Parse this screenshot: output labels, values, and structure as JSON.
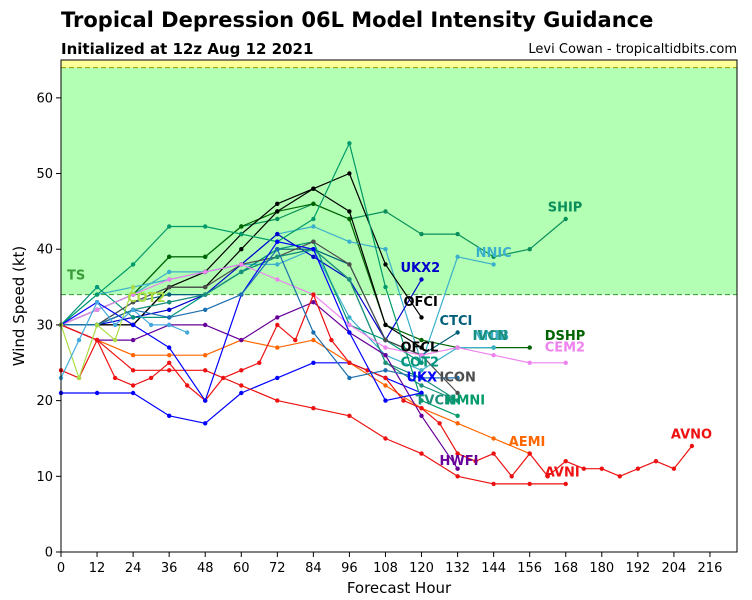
{
  "header": {
    "title": "Tropical Depression 06L Model Intensity Guidance",
    "subtitle": "Initialized at 12z Aug 12 2021",
    "credit": "Levi Cowan - tropicaltidbits.com"
  },
  "chart_data": {
    "type": "line",
    "title": "Tropical Depression 06L Model Intensity Guidance",
    "xlabel": "Forecast Hour",
    "ylabel": "Wind Speed (kt)",
    "xlim": [
      0,
      225
    ],
    "ylim": [
      0,
      65
    ],
    "xticks": [
      0,
      12,
      24,
      36,
      48,
      60,
      72,
      84,
      96,
      108,
      120,
      132,
      144,
      156,
      168,
      180,
      192,
      204,
      216
    ],
    "yticks": [
      0,
      10,
      20,
      30,
      40,
      50,
      60
    ],
    "grid": false,
    "bands": [
      {
        "label": "TS",
        "y0": 34,
        "y1": 64,
        "color": "#b3ffb3",
        "label_color": "#3a9a3a"
      },
      {
        "label": "",
        "y0": 64,
        "y1": 65,
        "color": "#ffff99",
        "label_color": "#999900"
      }
    ],
    "series": [
      {
        "name": "SHIP",
        "color": "#0a8f5a",
        "x": [
          0,
          12,
          24,
          36,
          48,
          60,
          72,
          84,
          96,
          108,
          120,
          132,
          144,
          156,
          168
        ],
        "y": [
          30,
          32,
          34,
          39,
          39,
          43,
          44,
          46,
          44,
          45,
          42,
          42,
          39,
          40,
          44
        ]
      },
      {
        "name": "DSHP",
        "color": "#006400",
        "x": [
          0,
          12,
          24,
          36,
          48,
          60,
          72,
          84,
          96,
          108,
          120,
          132,
          144,
          156
        ],
        "y": [
          30,
          32,
          34,
          39,
          39,
          43,
          45,
          46,
          44,
          30,
          28,
          27,
          27,
          27
        ]
      },
      {
        "name": "NNIC",
        "color": "#3ab0cc",
        "x": [
          0,
          12,
          24,
          36,
          48,
          60,
          72,
          84,
          96,
          108,
          120,
          132,
          144
        ],
        "y": [
          30,
          32,
          34,
          37,
          37,
          38,
          42,
          43,
          41,
          40,
          25,
          39,
          38
        ]
      },
      {
        "name": "NNIB",
        "color": "#3ab0cc",
        "x": [
          0,
          12,
          24,
          36,
          48,
          60,
          72,
          84,
          96,
          108,
          120,
          132,
          144
        ],
        "y": [
          30,
          34,
          35,
          36,
          37,
          38,
          38,
          40,
          31,
          26,
          24,
          27,
          27
        ]
      },
      {
        "name": "UKX2",
        "color": "#0000cc",
        "x": [
          0,
          12,
          24,
          36,
          48,
          60,
          72,
          84,
          96,
          108,
          120
        ],
        "y": [
          30,
          30,
          31,
          32,
          34,
          38,
          42,
          39,
          36,
          28,
          36
        ]
      },
      {
        "name": "UKX",
        "color": "#0000ff",
        "x": [
          0,
          12,
          24,
          36,
          48,
          60,
          72,
          84,
          96,
          108,
          120
        ],
        "y": [
          21,
          21,
          21,
          18,
          17,
          21,
          23,
          25,
          25,
          23,
          21
        ]
      },
      {
        "name": "OFCI",
        "color": "#000000",
        "x": [
          0,
          12,
          24,
          36,
          48,
          60,
          72,
          84,
          96,
          108,
          120
        ],
        "y": [
          30,
          30,
          30,
          35,
          37,
          42,
          46,
          48,
          50,
          38,
          31
        ]
      },
      {
        "name": "OFCL",
        "color": "#000000",
        "x": [
          0,
          12,
          24,
          36,
          48,
          60,
          72,
          84,
          96,
          108,
          120
        ],
        "y": [
          30,
          30,
          30,
          35,
          35,
          40,
          45,
          48,
          45,
          30,
          27
        ]
      },
      {
        "name": "CTCI",
        "color": "#005f7a",
        "x": [
          0,
          12,
          24,
          36,
          48,
          60,
          72,
          84,
          96,
          108,
          120,
          132
        ],
        "y": [
          30,
          30,
          33,
          34,
          34,
          37,
          40,
          40,
          38,
          28,
          26,
          29
        ]
      },
      {
        "name": "COT2",
        "color": "#00957a",
        "x": [
          0,
          12,
          24,
          36,
          48,
          60,
          72,
          84,
          96,
          108,
          120
        ],
        "y": [
          30,
          35,
          31,
          31,
          34,
          37,
          40,
          41,
          30,
          28,
          25
        ]
      },
      {
        "name": "ICON",
        "color": "#4d4d4d",
        "x": [
          0,
          12,
          24,
          36,
          48,
          60,
          72,
          84,
          96,
          108,
          120,
          132
        ],
        "y": [
          30,
          30,
          33,
          35,
          35,
          38,
          39,
          41,
          38,
          28,
          26,
          21
        ]
      },
      {
        "name": "IVCN",
        "color": "#1a8f7a",
        "x": [
          0,
          12,
          24,
          36,
          48,
          60,
          72,
          84,
          96,
          108,
          120,
          132
        ],
        "y": [
          30,
          30,
          32,
          33,
          34,
          37,
          39,
          40,
          36,
          25,
          23,
          20
        ]
      },
      {
        "name": "TVCN",
        "color": "#1a8f7a",
        "x": [
          0,
          12,
          24,
          36,
          48,
          60,
          72,
          84,
          96,
          108,
          120,
          132
        ],
        "y": [
          30,
          30,
          32,
          33,
          34,
          37,
          39,
          40,
          36,
          25,
          22,
          20
        ]
      },
      {
        "name": "HMNI",
        "color": "#009a6a",
        "x": [
          0,
          12,
          24,
          36,
          48,
          60,
          72,
          84,
          96,
          108,
          120,
          132
        ],
        "y": [
          30,
          34,
          38,
          43,
          43,
          42,
          41,
          44,
          54,
          35,
          20,
          18
        ]
      },
      {
        "name": "CEM2",
        "color": "#ee82ee",
        "x": [
          0,
          12,
          24,
          36,
          48,
          60,
          72,
          84,
          96,
          108,
          120,
          132,
          144,
          156,
          168
        ],
        "y": [
          30,
          32,
          34,
          36,
          37,
          38,
          36,
          34,
          30,
          27,
          26,
          27,
          26,
          25,
          25
        ]
      },
      {
        "name": "AEMI",
        "color": "#ff6600",
        "x": [
          0,
          12,
          24,
          36,
          48,
          60,
          72,
          84,
          96,
          108,
          120,
          132,
          144,
          156
        ],
        "y": [
          30,
          28,
          26,
          26,
          26,
          28,
          27,
          28,
          25,
          22,
          19,
          17,
          15,
          13
        ]
      },
      {
        "name": "HWFI",
        "color": "#660099",
        "x": [
          0,
          12,
          24,
          36,
          48,
          60,
          72,
          84,
          96,
          108,
          120,
          132
        ],
        "y": [
          30,
          28,
          28,
          30,
          30,
          28,
          31,
          33,
          29,
          26,
          18,
          11
        ]
      },
      {
        "name": "AVNO",
        "color": "#ee1111",
        "x": [
          0,
          6,
          12,
          18,
          24,
          30,
          36,
          42,
          48,
          54,
          60,
          66,
          72,
          78,
          84,
          90,
          96,
          102,
          108,
          114,
          120,
          126,
          132,
          138,
          144,
          150,
          156,
          162,
          168,
          174,
          180,
          186,
          192,
          198,
          204,
          210
        ],
        "y": [
          24,
          23,
          28,
          23,
          22,
          23,
          25,
          22,
          20,
          23,
          24,
          25,
          30,
          28,
          34,
          28,
          25,
          24,
          23,
          20,
          19,
          17,
          13,
          12,
          13,
          10,
          13,
          10,
          12,
          11,
          11,
          10,
          11,
          12,
          11,
          14
        ]
      },
      {
        "name": "AVNI",
        "color": "#ee1111",
        "x": [
          0,
          12,
          24,
          36,
          48,
          60,
          72,
          84,
          96,
          108,
          120,
          132,
          144,
          156,
          168
        ],
        "y": [
          30,
          28,
          24,
          24,
          24,
          22,
          20,
          19,
          18,
          15,
          13,
          10,
          9,
          9,
          9
        ]
      },
      {
        "name": "",
        "color": "#0000ff",
        "x": [
          0,
          12,
          24,
          36,
          48,
          60,
          72,
          84,
          96,
          108,
          120
        ],
        "y": [
          30,
          33,
          30,
          27,
          20,
          34,
          41,
          40,
          29,
          20,
          21
        ]
      },
      {
        "name": "",
        "color": "#1a6fb0",
        "x": [
          0,
          12,
          24,
          36,
          48,
          60,
          72,
          84,
          96,
          108,
          120,
          132
        ],
        "y": [
          30,
          30,
          32,
          31,
          32,
          34,
          40,
          29,
          23,
          24,
          23,
          23
        ]
      },
      {
        "name": "",
        "color": "#aadd44",
        "x": [
          0,
          6,
          12,
          18,
          24
        ],
        "y": [
          30,
          23,
          30,
          28,
          35
        ]
      },
      {
        "name": "",
        "color": "#44aadd",
        "x": [
          0,
          6,
          12,
          18,
          24,
          30,
          36,
          42
        ],
        "y": [
          23,
          28,
          33,
          30,
          32,
          30,
          30,
          29
        ]
      }
    ],
    "labels": [
      {
        "text": "SHIP",
        "x": 162,
        "y": 45,
        "color": "#0a8f5a"
      },
      {
        "text": "NNIC",
        "x": 138,
        "y": 39,
        "color": "#3ab0cc"
      },
      {
        "text": "UKX2",
        "x": 113,
        "y": 37,
        "color": "#0000cc"
      },
      {
        "text": "TS",
        "x": 2,
        "y": 36,
        "color": "#3a9a3a"
      },
      {
        "text": "OFCI",
        "x": 114,
        "y": 32.5,
        "color": "#000000"
      },
      {
        "text": "COT2",
        "x": 22,
        "y": 33,
        "color": "#aadd44"
      },
      {
        "text": "CTCI",
        "x": 126,
        "y": 30,
        "color": "#005f7a"
      },
      {
        "text": "NNIB",
        "x": 137,
        "y": 28,
        "color": "#3ab0cc"
      },
      {
        "text": "IVCN",
        "x": 137,
        "y": 28,
        "color": "#1a8f7a"
      },
      {
        "text": "DSHP",
        "x": 161,
        "y": 28,
        "color": "#006400"
      },
      {
        "text": "OFCL",
        "x": 113,
        "y": 26.5,
        "color": "#000000"
      },
      {
        "text": "CEM2",
        "x": 161,
        "y": 26.5,
        "color": "#ee82ee"
      },
      {
        "text": "COT2",
        "x": 113,
        "y": 24.5,
        "color": "#00957a"
      },
      {
        "text": "UKX",
        "x": 115,
        "y": 22.5,
        "color": "#0000ff"
      },
      {
        "text": "ICON",
        "x": 126,
        "y": 22.5,
        "color": "#4d4d4d"
      },
      {
        "text": "TVCN",
        "x": 118,
        "y": 19.5,
        "color": "#1a8f7a"
      },
      {
        "text": "HMNI",
        "x": 128,
        "y": 19.5,
        "color": "#009a6a"
      },
      {
        "text": "AEMI",
        "x": 149,
        "y": 14,
        "color": "#ff6600"
      },
      {
        "text": "AVNO",
        "x": 203,
        "y": 15,
        "color": "#ee1111"
      },
      {
        "text": "HWFI",
        "x": 126,
        "y": 11.5,
        "color": "#660099"
      },
      {
        "text": "AVNI",
        "x": 161,
        "y": 10,
        "color": "#ee1111"
      }
    ]
  }
}
